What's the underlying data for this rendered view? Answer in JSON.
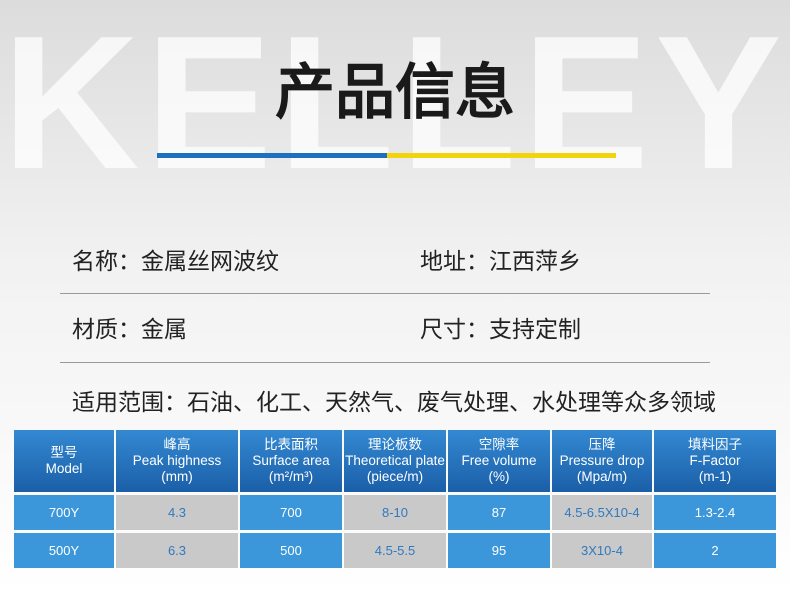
{
  "watermark": "KELLEY",
  "header": {
    "title": "产品信息"
  },
  "info": {
    "rows": [
      [
        "名称：金属丝网波纹",
        "地址：江西萍乡"
      ],
      [
        "材质：金属",
        "尺寸：支持定制"
      ],
      [
        "适用范围：石油、化工、天然气、废气处理、水处理等众多领域"
      ]
    ]
  },
  "table": {
    "header": [
      [
        "型号",
        "Model"
      ],
      [
        "峰高",
        "Peak highness",
        "(mm)"
      ],
      [
        "比表面积",
        "Surface area",
        "(m²/m³)"
      ],
      [
        "理论板数",
        "Theoretical plate",
        "(piece/m)"
      ],
      [
        "空隙率",
        "Free volume",
        "(%)"
      ],
      [
        "压降",
        "Pressure drop",
        "(Mpa/m)"
      ],
      [
        "填料因子",
        "F-Factor",
        "(m-1)"
      ]
    ],
    "rows": [
      [
        "700Y",
        "4.3",
        "700",
        "8-10",
        "87",
        "4.5-6.5X10-4",
        "1.3-2.4"
      ],
      [
        "500Y",
        "6.3",
        "500",
        "4.5-5.5",
        "95",
        "3X10-4",
        "2"
      ]
    ]
  }
}
